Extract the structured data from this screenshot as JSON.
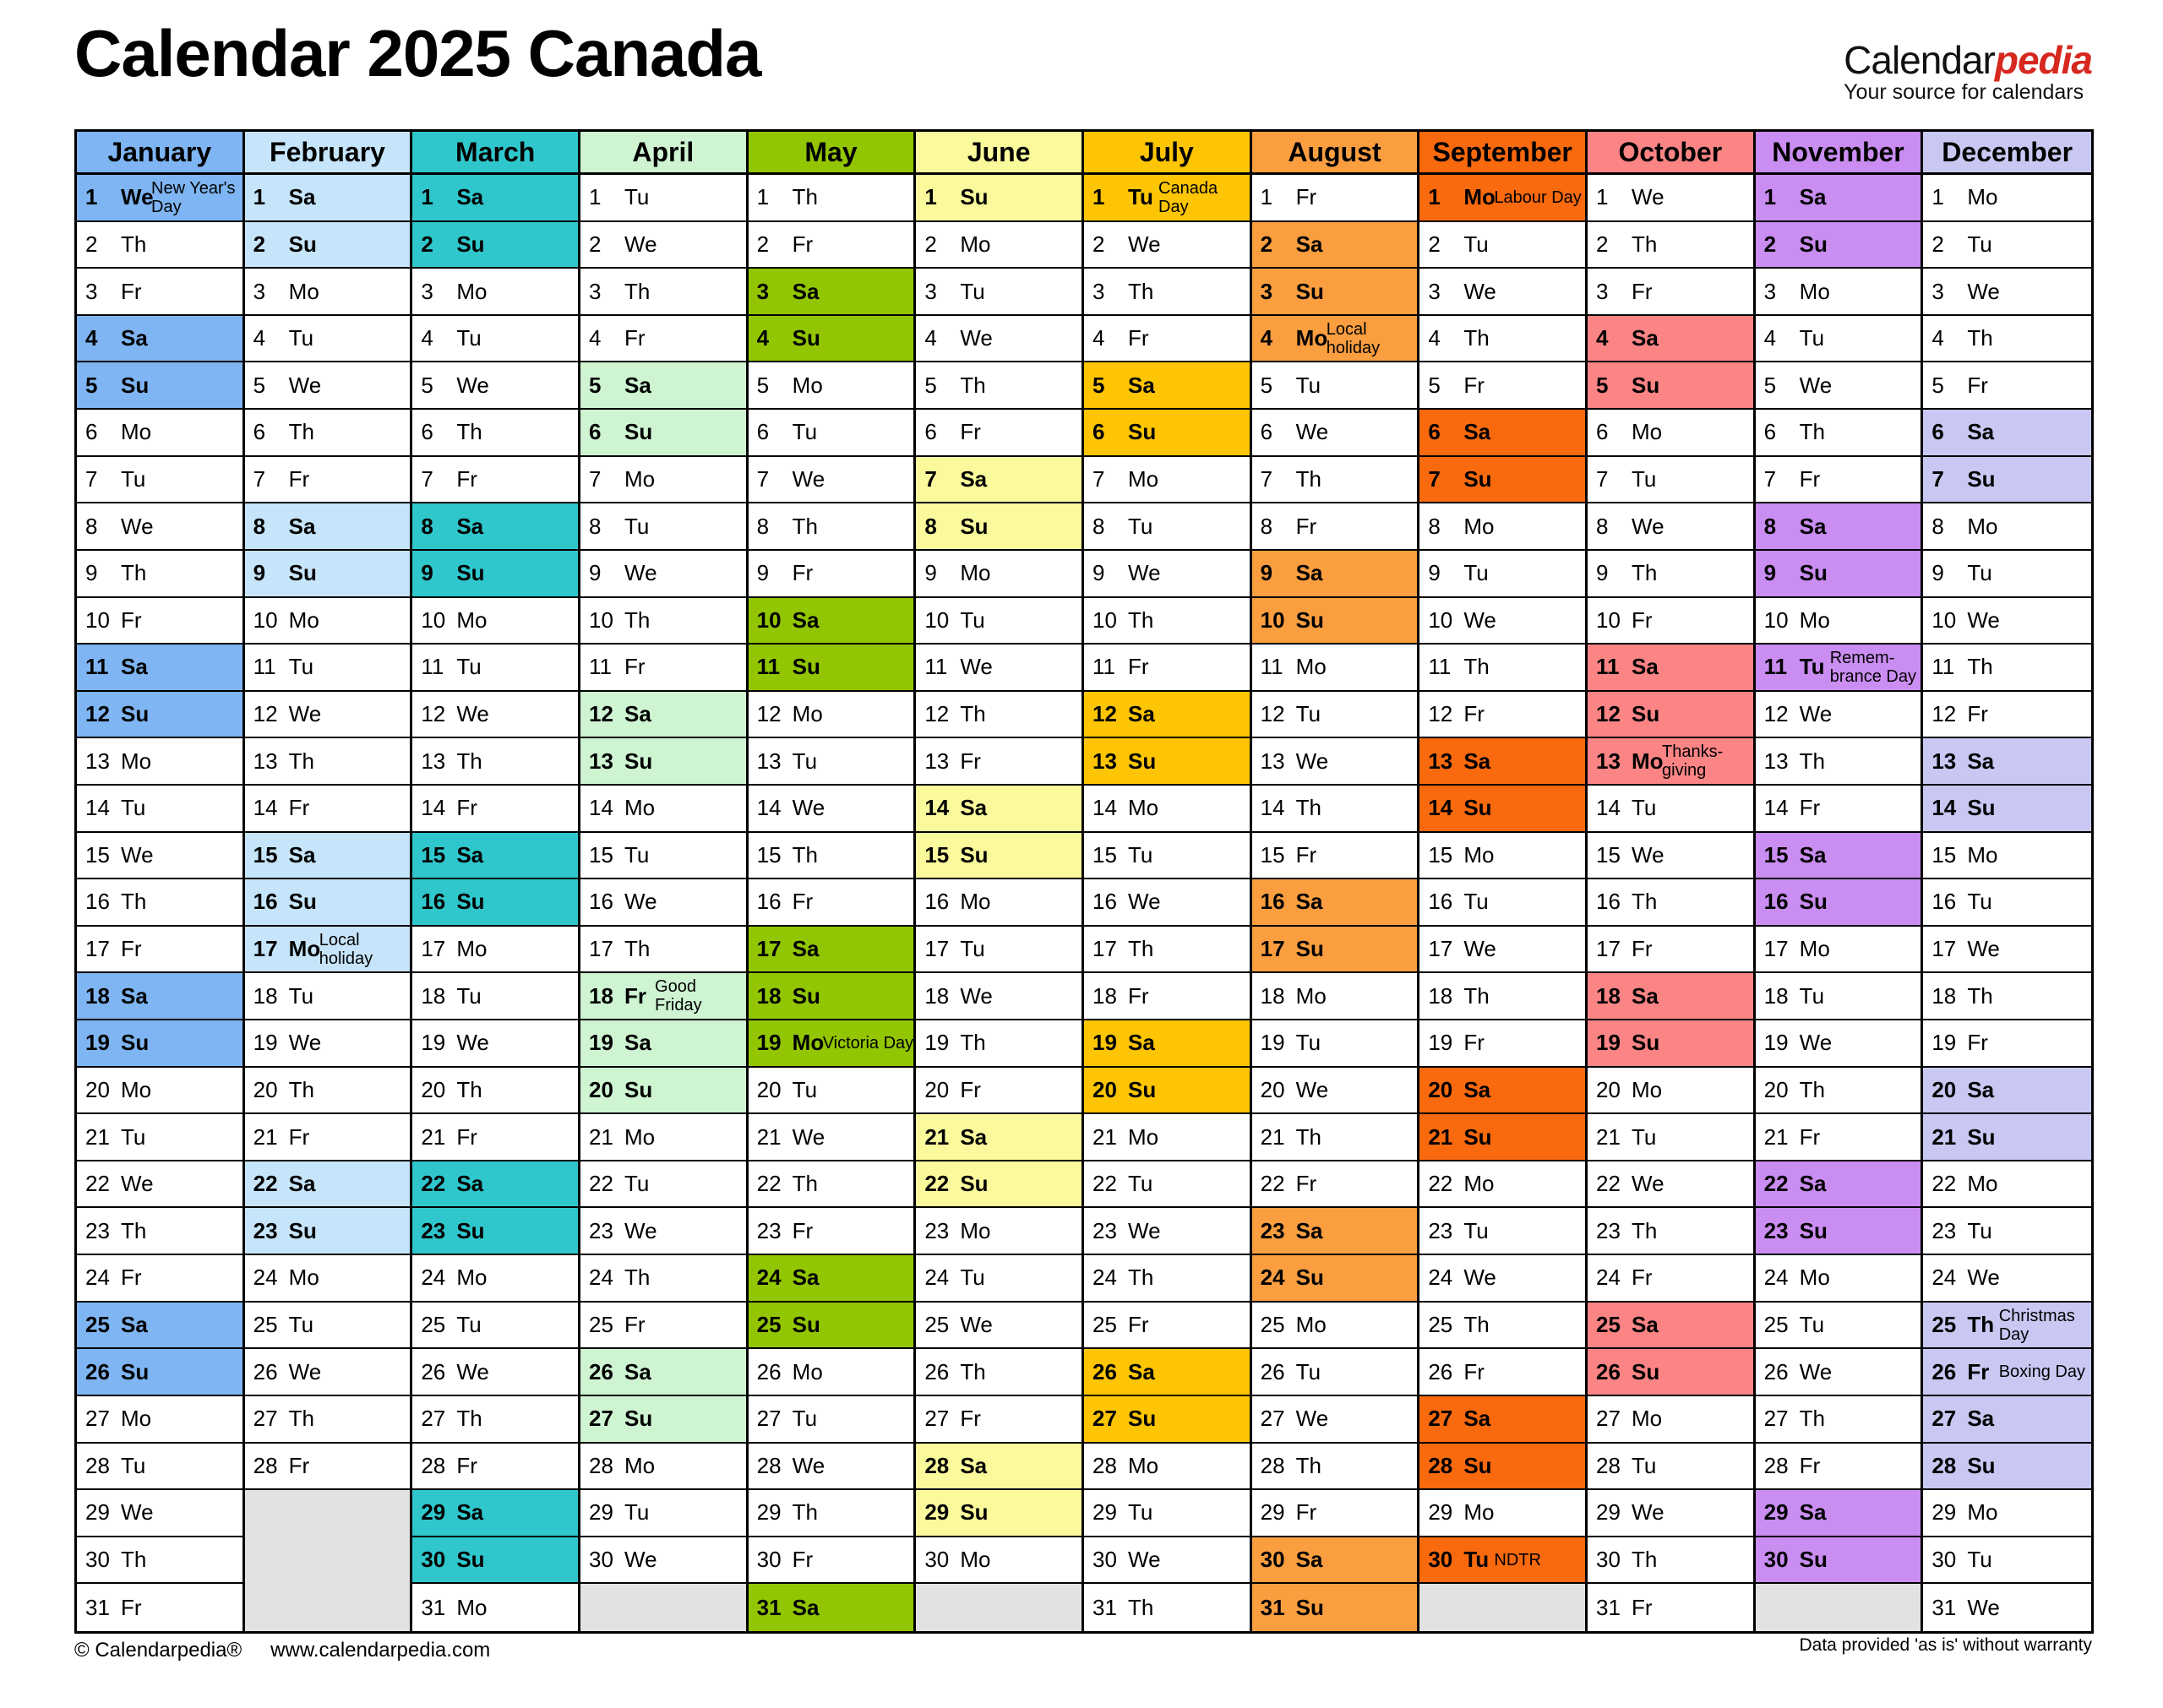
{
  "title": "Calendar 2025 Canada",
  "logo": {
    "brand_black": "Calendar",
    "brand_red": "pedia",
    "tagline": "Your source for calendars"
  },
  "footer": {
    "copyright": "© Calendarpedia®",
    "website": "www.calendarpedia.com",
    "disclaimer": "Data provided 'as is' without warranty"
  },
  "weekday_labels": [
    "Mo",
    "Tu",
    "We",
    "Th",
    "Fr",
    "Sa",
    "Su"
  ],
  "empty_cell_color": "#E2E2E2",
  "months": [
    {
      "name": "January",
      "days": 31,
      "first_weekday": 2,
      "color": "#7EB5F2",
      "holidays": {
        "1": [
          "New Year's",
          "Day"
        ]
      }
    },
    {
      "name": "February",
      "days": 28,
      "first_weekday": 5,
      "color": "#C6E5FA",
      "holidays": {
        "17": [
          "Local",
          "holiday"
        ]
      }
    },
    {
      "name": "March",
      "days": 31,
      "first_weekday": 5,
      "color": "#2FC7CC",
      "holidays": {}
    },
    {
      "name": "April",
      "days": 30,
      "first_weekday": 1,
      "color": "#CEF4D2",
      "holidays": {
        "18": [
          "Good",
          "Friday"
        ]
      }
    },
    {
      "name": "May",
      "days": 31,
      "first_weekday": 3,
      "color": "#92C502",
      "holidays": {
        "19": [
          "Victoria Day"
        ]
      }
    },
    {
      "name": "June",
      "days": 30,
      "first_weekday": 6,
      "color": "#FAFA9C",
      "holidays": {}
    },
    {
      "name": "July",
      "days": 31,
      "first_weekday": 1,
      "color": "#FDC504",
      "holidays": {
        "1": [
          "Canada",
          "Day"
        ]
      }
    },
    {
      "name": "August",
      "days": 31,
      "first_weekday": 4,
      "color": "#FA9E40",
      "holidays": {
        "4": [
          "Local",
          "holiday"
        ]
      }
    },
    {
      "name": "September",
      "days": 30,
      "first_weekday": 0,
      "color": "#F9690E",
      "holidays": {
        "1": [
          "Labour Day"
        ],
        "30": [
          "NDTR"
        ]
      }
    },
    {
      "name": "October",
      "days": 31,
      "first_weekday": 2,
      "color": "#FB8485",
      "holidays": {
        "13": [
          "Thanks-",
          "giving"
        ]
      }
    },
    {
      "name": "November",
      "days": 30,
      "first_weekday": 5,
      "color": "#CA8DF2",
      "holidays": {
        "11": [
          "Remem-",
          "brance Day"
        ]
      }
    },
    {
      "name": "December",
      "days": 31,
      "first_weekday": 0,
      "color": "#C8C8F3",
      "holidays": {
        "25": [
          "Christmas",
          "Day"
        ],
        "26": [
          "Boxing Day"
        ]
      }
    }
  ]
}
